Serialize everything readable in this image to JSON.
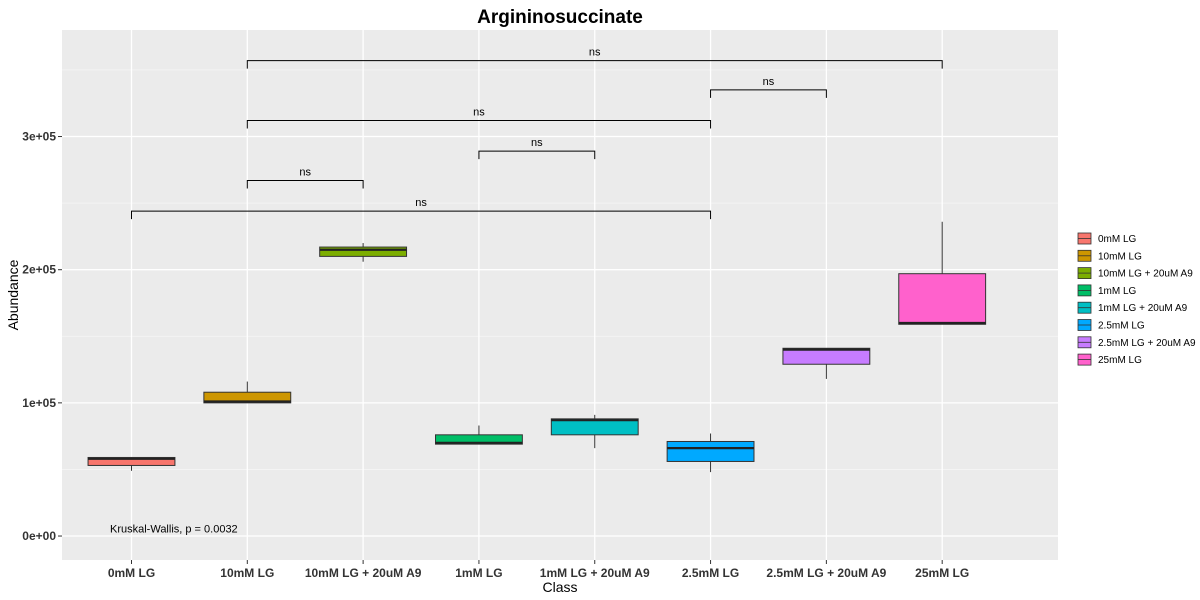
{
  "chart_data": {
    "type": "box",
    "title": "Argininosuccinate",
    "xlabel": "Class",
    "ylabel": "Abundance",
    "ylim": [
      -18000,
      380000
    ],
    "yticks": [
      0,
      100000,
      200000,
      300000
    ],
    "ytick_labels": [
      "0e+00",
      "1e+05",
      "2e+05",
      "3e+05"
    ],
    "categories": [
      "0mM LG",
      "10mM LG",
      "10mM LG + 20uM A9",
      "1mM LG",
      "1mM LG + 20uM A9",
      "2.5mM LG",
      "2.5mM LG + 20uM A9",
      "25mM LG"
    ],
    "colors": [
      "#F8766D",
      "#CD9600",
      "#7CAE00",
      "#00BE67",
      "#00BFC4",
      "#00A9FF",
      "#C77CFF",
      "#FF61CC"
    ],
    "boxes": [
      {
        "min": 49000,
        "q1": 53000,
        "median": 58000,
        "q3": 59000,
        "max": 59000
      },
      {
        "min": 100000,
        "q1": 100000,
        "median": 101000,
        "q3": 108000,
        "max": 116000
      },
      {
        "min": 206000,
        "q1": 210000,
        "median": 215000,
        "q3": 217000,
        "max": 220000
      },
      {
        "min": 69000,
        "q1": 69000,
        "median": 70000,
        "q3": 76000,
        "max": 83000
      },
      {
        "min": 66000,
        "q1": 76000,
        "median": 87000,
        "q3": 88000,
        "max": 91000
      },
      {
        "min": 48000,
        "q1": 56000,
        "median": 66000,
        "q3": 71000,
        "max": 77000
      },
      {
        "min": 118000,
        "q1": 129000,
        "median": 140000,
        "q3": 141000,
        "max": 141000
      },
      {
        "min": 159000,
        "q1": 159000,
        "median": 160000,
        "q3": 197000,
        "max": 236000
      }
    ],
    "legend": {
      "position": "right",
      "entries": [
        "0mM LG",
        "10mM LG",
        "10mM LG + 20uM A9",
        "1mM LG",
        "1mM LG + 20uM A9",
        "2.5mM LG",
        "2.5mM LG + 20uM A9",
        "25mM LG"
      ]
    },
    "comparisons": [
      {
        "from": 0,
        "to": 5,
        "y": 244000,
        "label": "ns"
      },
      {
        "from": 1,
        "to": 2,
        "y": 267000,
        "label": "ns"
      },
      {
        "from": 3,
        "to": 4,
        "y": 289000,
        "label": "ns"
      },
      {
        "from": 1,
        "to": 5,
        "y": 312000,
        "label": "ns"
      },
      {
        "from": 5,
        "to": 6,
        "y": 335000,
        "label": "ns"
      },
      {
        "from": 1,
        "to": 7,
        "y": 357000,
        "label": "ns"
      }
    ],
    "annotation": "Kruskal-Wallis, p = 0.0032",
    "annotation_y": 2000,
    "grid": true
  }
}
